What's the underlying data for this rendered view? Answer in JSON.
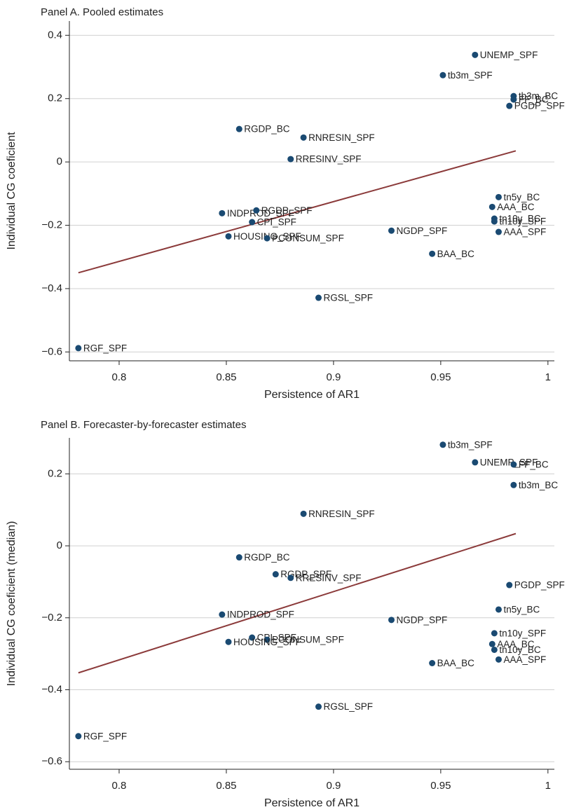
{
  "chart_data": [
    {
      "type": "scatter",
      "title": "Panel A. Pooled estimates",
      "x_label": "Persistence of AR1",
      "y_label": "Individual CG coeficient",
      "labels": [
        "UNEMP_SPF",
        "tb3m_SPF",
        "tb3m_BC",
        "FF_BC",
        "PGDP_SPF",
        "RGDP_BC",
        "RNRESIN_SPF",
        "RRESINV_SPF",
        "tn5y_BC",
        "AAA_BC",
        "INDPROD_SPF",
        "RGDP_SPF",
        "tn10y_BC",
        "tn10y_SPF",
        "CPI_SPF",
        "AAA_SPF",
        "NGDP_SPF",
        "HOUSING_SPF",
        "PCONSUM_SPF",
        "BAA_BC",
        "RGSL_SPF",
        "RGF_SPF"
      ],
      "x": [
        0.966,
        0.951,
        0.984,
        0.984,
        0.982,
        0.856,
        0.886,
        0.88,
        0.977,
        0.974,
        0.848,
        0.864,
        0.975,
        0.975,
        0.862,
        0.977,
        0.927,
        0.851,
        0.869,
        0.946,
        0.893,
        0.781
      ],
      "y": [
        0.338,
        0.274,
        0.208,
        0.197,
        0.177,
        0.104,
        0.077,
        0.009,
        -0.111,
        -0.142,
        -0.162,
        -0.153,
        -0.179,
        -0.188,
        -0.19,
        -0.221,
        -0.217,
        -0.235,
        -0.241,
        -0.29,
        -0.429,
        -0.588
      ],
      "color": "#1a4a72",
      "fit_line": {
        "x": [
          0.781,
          0.985
        ],
        "y": [
          -0.35,
          0.035
        ],
        "color": "#8b3a3a"
      },
      "xlim": [
        0.7768,
        1.003
      ],
      "ylim": [
        -0.628,
        0.445
      ],
      "xticks": [
        0.8,
        0.85,
        0.9,
        0.95,
        1
      ],
      "yticks": [
        {
          "value": -0.6,
          "label": "−0.6"
        },
        {
          "value": -0.4,
          "label": "−0.4"
        },
        {
          "value": -0.2,
          "label": "−0.2"
        },
        0,
        0.2,
        0.4
      ],
      "grid": true
    },
    {
      "type": "scatter",
      "title": "Panel B. Forecaster-by-forecaster estimates",
      "x_label": "Persistence of AR1",
      "y_label": "Individual CG coeficient (median)",
      "labels": [
        "tb3m_SPF",
        "UNEMP_SPF",
        "FF_BC",
        "tb3m_BC",
        "RNRESIN_SPF",
        "RGDP_BC",
        "RGDP_SPF",
        "RRESINV_SPF",
        "PGDP_SPF",
        "tn5y_BC",
        "INDPROD_SPF",
        "NGDP_SPF",
        "tn10y_SPF",
        "CPI_SPF",
        "PCONSUM_SPF",
        "HOUSING_SPF",
        "AAA_BC",
        "tn10y_BC",
        "AAA_SPF",
        "BAA_BC",
        "RGSL_SPF",
        "RGF_SPF"
      ],
      "x": [
        0.951,
        0.966,
        0.984,
        0.984,
        0.886,
        0.856,
        0.873,
        0.88,
        0.982,
        0.977,
        0.848,
        0.927,
        0.975,
        0.862,
        0.869,
        0.851,
        0.974,
        0.975,
        0.977,
        0.946,
        0.893,
        0.781
      ],
      "y": [
        0.281,
        0.232,
        0.226,
        0.169,
        0.089,
        -0.032,
        -0.079,
        -0.089,
        -0.109,
        -0.177,
        -0.191,
        -0.206,
        -0.243,
        -0.255,
        -0.261,
        -0.267,
        -0.273,
        -0.289,
        -0.316,
        -0.326,
        -0.447,
        -0.529
      ],
      "color": "#1a4a72",
      "fit_line": {
        "x": [
          0.781,
          0.985
        ],
        "y": [
          -0.353,
          0.034
        ],
        "color": "#8b3a3a"
      },
      "xlim": [
        0.7768,
        1.003
      ],
      "ylim": [
        -0.621,
        0.3
      ],
      "xticks": [
        0.8,
        0.85,
        0.9,
        0.95,
        1
      ],
      "yticks": [
        {
          "value": -0.6,
          "label": "−0.6"
        },
        {
          "value": -0.4,
          "label": "−0.4"
        },
        {
          "value": -0.2,
          "label": "−0.2"
        },
        0,
        0.2
      ],
      "grid": true
    }
  ]
}
